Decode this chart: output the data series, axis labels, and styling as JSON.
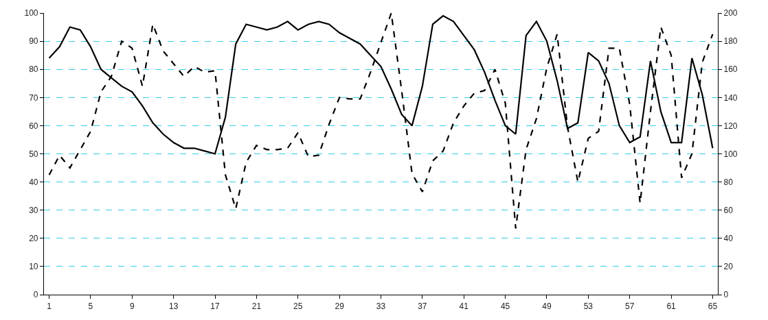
{
  "chart_data": {
    "type": "line",
    "x": [
      1,
      2,
      3,
      4,
      5,
      6,
      7,
      8,
      9,
      10,
      11,
      12,
      13,
      14,
      15,
      16,
      17,
      18,
      19,
      20,
      21,
      22,
      23,
      24,
      25,
      26,
      27,
      28,
      29,
      30,
      31,
      32,
      33,
      34,
      35,
      36,
      37,
      38,
      39,
      40,
      41,
      42,
      43,
      44,
      45,
      46,
      47,
      48,
      49,
      50,
      51,
      52,
      53,
      54,
      55,
      56,
      57,
      58,
      59,
      60,
      61,
      62,
      63,
      64,
      65
    ],
    "series": [
      {
        "color": "#000000",
        "line_style": "solid",
        "values": [
          84,
          88,
          95,
          94,
          88,
          80,
          77,
          74,
          72,
          67,
          61,
          57,
          54,
          52,
          52,
          51,
          50,
          63,
          89,
          96,
          95,
          94,
          95,
          97,
          94,
          96,
          97,
          96,
          93,
          91,
          89,
          85,
          81,
          73,
          64,
          60,
          74,
          96,
          99,
          97,
          92,
          87,
          79,
          69,
          60,
          57,
          92,
          97,
          90,
          76,
          59,
          61,
          86,
          83,
          75,
          60,
          54,
          56,
          83,
          65,
          54,
          54,
          84,
          71,
          52
        ]
      },
      {
        "color": "#000000",
        "line_style": "dashed",
        "axis": "y2",
        "values": [
          85,
          99,
          90,
          103,
          116,
          144,
          155,
          180,
          175,
          148,
          192,
          173,
          164,
          155,
          162,
          158,
          159,
          85,
          61,
          94,
          106,
          103,
          103,
          104,
          115,
          98,
          99,
          121,
          140,
          139,
          139,
          158,
          179,
          200,
          145,
          86,
          73,
          95,
          102,
          122,
          134,
          143,
          145,
          160,
          136,
          47,
          103,
          125,
          161,
          185,
          119,
          80,
          111,
          116,
          175,
          175,
          135,
          65,
          130,
          190,
          170,
          83,
          100,
          165,
          185
        ]
      }
    ],
    "xlim": [
      0.5,
      65.5
    ],
    "xticks": [
      1,
      5,
      9,
      13,
      17,
      21,
      25,
      29,
      33,
      37,
      41,
      45,
      49,
      53,
      57,
      61,
      65
    ],
    "ylim": [
      0,
      100
    ],
    "yticks": [
      0,
      10,
      20,
      30,
      40,
      50,
      60,
      70,
      80,
      90,
      100
    ],
    "y2lim": [
      0,
      200
    ],
    "y2ticks": [
      0,
      20,
      40,
      60,
      80,
      100,
      120,
      140,
      160,
      180,
      200
    ],
    "grid": "y",
    "marker": "none"
  }
}
